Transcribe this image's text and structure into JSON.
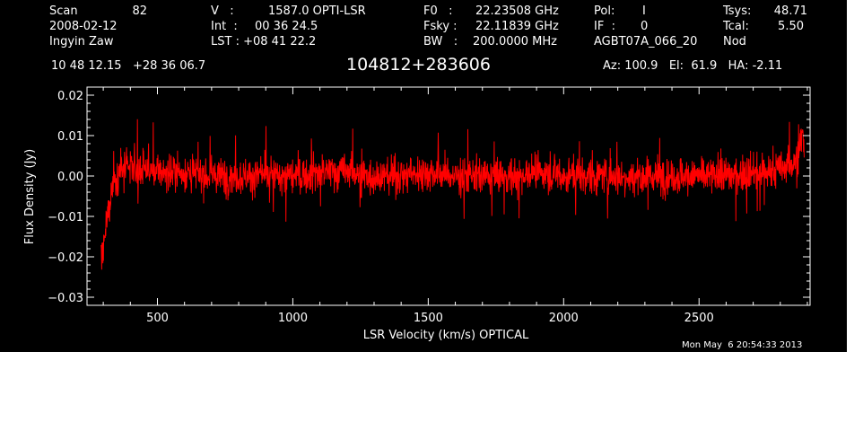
{
  "header": {
    "scan_label": "Scan",
    "scan_number": "82",
    "date": "2008-02-12",
    "observer": "Ingyin Zaw",
    "v_label": "V   :",
    "v_value": "1587.0 OPTI-LSR",
    "int_label": "Int  :",
    "int_value": "00 36 24.5",
    "lst_label": "LST : +08 41 22.2",
    "f0_label": "F0   :",
    "f0_value": "22.23508 GHz",
    "fsky_label": "Fsky :",
    "fsky_value": "22.11839 GHz",
    "bw_label": "BW   :",
    "bw_value": "200.0000 MHz",
    "pol_label": "Pol:",
    "pol_value": "I",
    "if_label": "IF  :",
    "if_value": "0",
    "project": "AGBT07A_066_20",
    "tsys_label": "Tsys:",
    "tsys_value": "48.71",
    "tcal_label": "Tcal:",
    "tcal_value": "5.50",
    "mode": "Nod",
    "coordinates": "10 48 12.15   +28 36 06.7",
    "source": "104812+283606",
    "pointing": "Az: 100.9   El:  61.9   HA: -2.11"
  },
  "footer": {
    "timestamp": "Mon May  6 20:54:33 2013"
  },
  "colors": {
    "background": "#000000",
    "axes": "#ffffff",
    "trace": "#ff0000"
  },
  "chart_data": {
    "type": "line",
    "xlabel": "LSR Velocity (km/s) OPTICAL",
    "ylabel": "Flux Density (Jy)",
    "xlim": [
      240,
      2910
    ],
    "ylim": [
      -0.032,
      0.022
    ],
    "xticks": [
      500,
      1000,
      1500,
      2000,
      2500
    ],
    "xtick_labels": [
      "500",
      "1000",
      "1500",
      "2000",
      "2500"
    ],
    "yticks": [
      -0.03,
      -0.02,
      -0.01,
      0.0,
      0.01,
      0.02
    ],
    "ytick_labels": [
      "−0.03",
      "−0.02",
      "−0.01",
      "0.00",
      "0.01",
      "0.02"
    ],
    "series": [
      {
        "x": [
          292,
          300,
          310,
          320,
          330,
          340,
          360,
          400,
          450,
          500,
          600,
          700,
          800,
          900,
          1000,
          1100,
          1200,
          1300,
          1400,
          1500,
          1600,
          1700,
          1800,
          1900,
          2000,
          2100,
          2200,
          2300,
          2400,
          2500,
          2600,
          2700,
          2780,
          2820,
          2850,
          2865,
          2875,
          2882,
          2888
        ],
        "y": [
          -0.019,
          -0.02,
          -0.013,
          -0.008,
          -0.004,
          -0.001,
          0.001,
          0.002,
          0.002,
          0.001,
          0.001,
          0.0,
          0.0,
          0.0,
          0.0,
          0.001,
          0.001,
          0.0,
          0.0,
          0.001,
          0.0,
          0.0,
          0.0,
          0.001,
          0.0,
          0.0,
          0.0,
          0.0,
          0.0,
          0.0,
          0.0,
          0.001,
          0.001,
          0.002,
          0.003,
          0.006,
          0.008,
          0.011,
          0.007
        ],
        "noise_rms": 0.004
      }
    ]
  }
}
